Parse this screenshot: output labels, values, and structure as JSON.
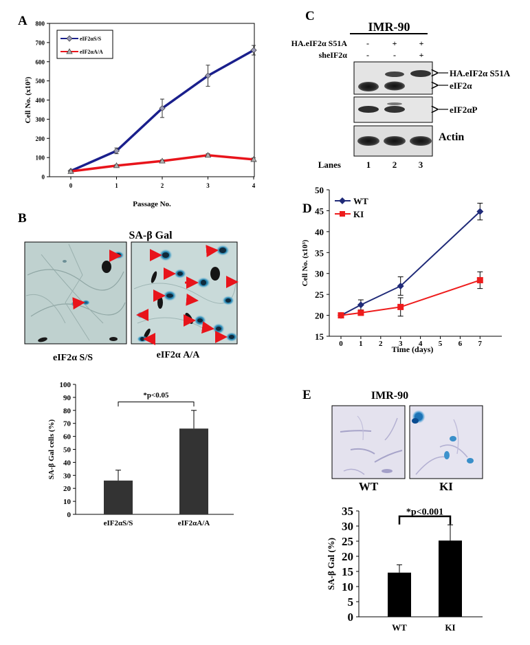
{
  "panels": {
    "A": "A",
    "B": "B",
    "C": "C",
    "D": "D",
    "E": "E"
  },
  "colors": {
    "navy": "#1a1f8c",
    "red": "#e8141b",
    "bar": "#333333",
    "bar_black": "#000000",
    "wt_line": "#1f2a78",
    "ki_line": "#ee1c1c"
  },
  "panelB": {
    "title": "SA-β Gal",
    "labels": [
      "eIF2α S/S",
      "eIF2α A/A"
    ]
  },
  "panelC": {
    "cell_line": "IMR-90",
    "rows": [
      {
        "label": "HA.eIF2α S51A",
        "marks": [
          "-",
          "+",
          "+"
        ]
      },
      {
        "label": "sheIF2α",
        "marks": [
          "-",
          "-",
          "+"
        ]
      }
    ],
    "bands": [
      "HA.eIF2α S51A",
      "eIF2α",
      "eIF2αP",
      "Actin"
    ],
    "lanes_label": "Lanes",
    "lanes": [
      "1",
      "2",
      "3"
    ]
  },
  "panelE": {
    "title": "IMR-90",
    "labels": [
      "WT",
      "KI"
    ]
  },
  "chart_data": [
    {
      "id": "A",
      "type": "line",
      "title": "",
      "xlabel": "Passage No.",
      "ylabel": "Cell No. (x10³)",
      "x": [
        0,
        1,
        2,
        3,
        4
      ],
      "xticks": [
        "0",
        "1",
        "2",
        "3",
        "4"
      ],
      "ylim": [
        0,
        800
      ],
      "yticks": [
        "0",
        "100",
        "200",
        "300",
        "400",
        "500",
        "600",
        "700",
        "800"
      ],
      "legend_position": "top-left",
      "series": [
        {
          "name": "eIF2αS/S",
          "values": [
            30,
            135,
            357,
            527,
            660
          ],
          "errors": [
            5,
            15,
            48,
            55,
            25
          ]
        },
        {
          "name": "eIF2αA/A",
          "values": [
            28,
            58,
            82,
            112,
            90
          ],
          "errors": [
            3,
            5,
            6,
            8,
            8
          ]
        }
      ]
    },
    {
      "id": "B",
      "type": "bar",
      "title": "",
      "xlabel": "",
      "ylabel": "SA-β Gal cells (%)",
      "categories": [
        "eIF2αS/S",
        "eIF2αA/A"
      ],
      "values": [
        26,
        66
      ],
      "errors": [
        8,
        14
      ],
      "ylim": [
        0,
        100
      ],
      "yticks": [
        "0",
        "10",
        "20",
        "30",
        "40",
        "50",
        "60",
        "70",
        "80",
        "90",
        "100"
      ],
      "annotation": "*p<0.05"
    },
    {
      "id": "D",
      "type": "line",
      "title": "",
      "xlabel": "Time (days)",
      "ylabel": "Cell No. (x10³)",
      "x": [
        0,
        1,
        3,
        7
      ],
      "xticks": [
        "0",
        "1",
        "2",
        "3",
        "4",
        "5",
        "6",
        "7"
      ],
      "ylim": [
        15,
        50
      ],
      "yticks": [
        "15",
        "20",
        "25",
        "30",
        "35",
        "40",
        "45",
        "50"
      ],
      "legend_position": "top-left",
      "series": [
        {
          "name": "WT",
          "values": [
            20,
            22.5,
            27,
            44.8
          ],
          "errors": [
            0.3,
            1.2,
            2.2,
            2
          ]
        },
        {
          "name": "KI",
          "values": [
            20,
            20.6,
            22,
            28.4
          ],
          "errors": [
            0.3,
            0.5,
            2.2,
            2
          ]
        }
      ]
    },
    {
      "id": "E",
      "type": "bar",
      "title": "",
      "xlabel": "",
      "ylabel": "SA-β Gal (%)",
      "categories": [
        "WT",
        "KI"
      ],
      "values": [
        14.6,
        25.2
      ],
      "errors": [
        2.6,
        5.2
      ],
      "ylim": [
        0,
        35
      ],
      "yticks": [
        "0",
        "5",
        "10",
        "15",
        "20",
        "25",
        "30",
        "35"
      ],
      "annotation": "*p<0.001"
    }
  ]
}
